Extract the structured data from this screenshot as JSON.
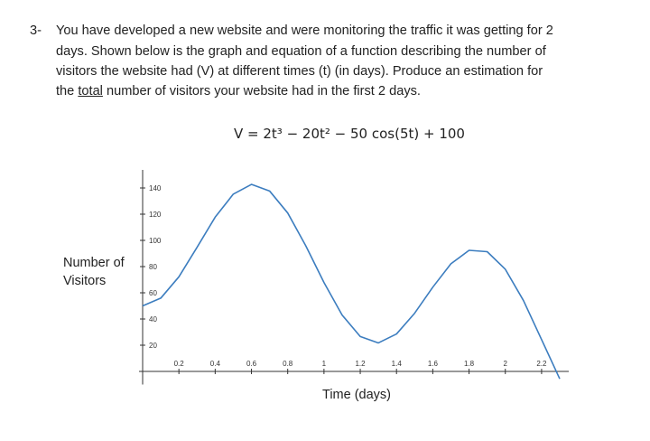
{
  "question": {
    "number": "3-",
    "lines": [
      "You have developed a new website and were monitoring the traffic it was getting for 2",
      "days. Shown below is the graph and equation of a function describing the number of",
      "visitors the website had (V) at different times (t) (in days). Produce an estimation for"
    ],
    "last_line": {
      "before": "the ",
      "underlined": "total",
      "after": " number of visitors your website had in the first 2 days."
    },
    "equation": "V = 2t³ − 20t² − 50 cos(5t) + 100"
  },
  "chart_data": {
    "type": "line",
    "y_label_lines": [
      "Number of",
      "Visitors"
    ],
    "x_label": "Time (days)",
    "x": [
      0,
      0.1,
      0.2,
      0.3,
      0.4,
      0.5,
      0.6,
      0.7,
      0.8,
      0.9,
      1.0,
      1.1,
      1.2,
      1.3,
      1.4,
      1.5,
      1.6,
      1.7,
      1.8,
      1.9,
      2.0,
      2.1,
      2.2,
      2.3
    ],
    "values": [
      50,
      55.92,
      72.2,
      94.72,
      117.74,
      135.31,
      142.73,
      137.71,
      120.91,
      95.8,
      67.82,
      43.03,
      26.65,
      21.76,
      28.59,
      44.42,
      64.27,
      82.13,
      92.42,
      91.38,
      77.95,
      54.1,
      24.28,
      -5.63
    ],
    "color": "#3c7dbf",
    "xlim": [
      0,
      2.3
    ],
    "ylim": [
      -10,
      150
    ],
    "xticks": [
      0.2,
      0.4,
      0.6,
      0.8,
      1,
      1.2,
      1.4,
      1.6,
      1.8,
      2,
      2.2
    ],
    "yticks": [
      20,
      40,
      60,
      80,
      100,
      120,
      140
    ]
  }
}
